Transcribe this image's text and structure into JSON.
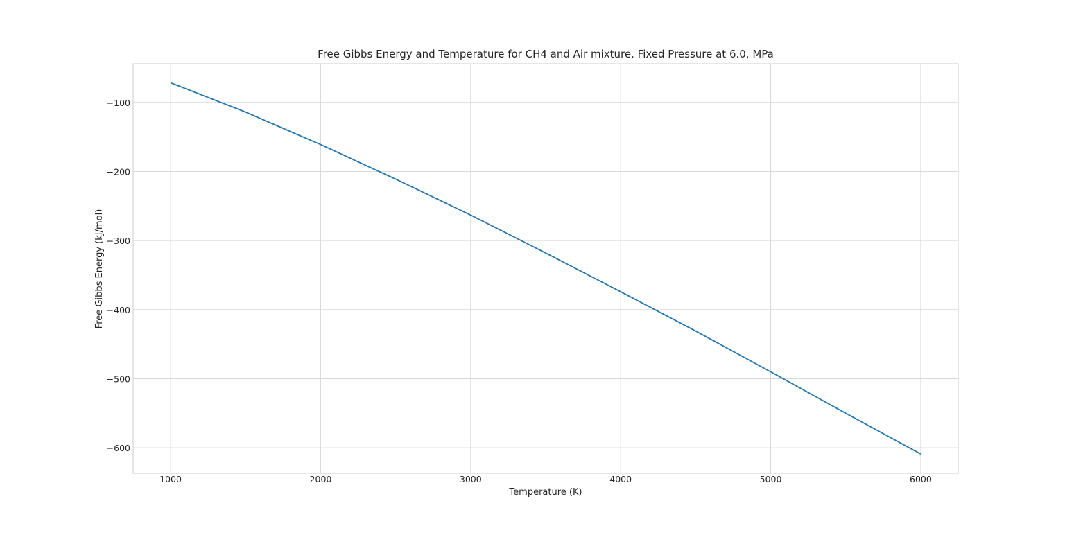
{
  "chart_data": {
    "type": "line",
    "title": "Free Gibbs Energy and Temperature for CH4 and Air mixture. Fixed Pressure at 6.0, MPa",
    "xlabel": "Temperature (K)",
    "ylabel": "Free Gibbs Energy (kJ/mol)",
    "xlim": [
      750,
      6250
    ],
    "ylim": [
      -637,
      -44
    ],
    "xticks": [
      1000,
      2000,
      3000,
      4000,
      5000,
      6000
    ],
    "xtick_labels": [
      "1000",
      "2000",
      "3000",
      "4000",
      "5000",
      "6000"
    ],
    "yticks": [
      -100,
      -200,
      -300,
      -400,
      -500,
      -600
    ],
    "ytick_labels": [
      "−100",
      "−200",
      "−300",
      "−400",
      "−500",
      "−600"
    ],
    "grid": true,
    "series": [
      {
        "color": "#1f77b4",
        "x": [
          1000,
          1500,
          2000,
          2500,
          3000,
          3500,
          4000,
          4500,
          5000,
          5500,
          6000
        ],
        "y": [
          -71.5,
          -114,
          -161,
          -211,
          -263,
          -318,
          -374,
          -431,
          -490,
          -550,
          -609
        ]
      }
    ]
  }
}
